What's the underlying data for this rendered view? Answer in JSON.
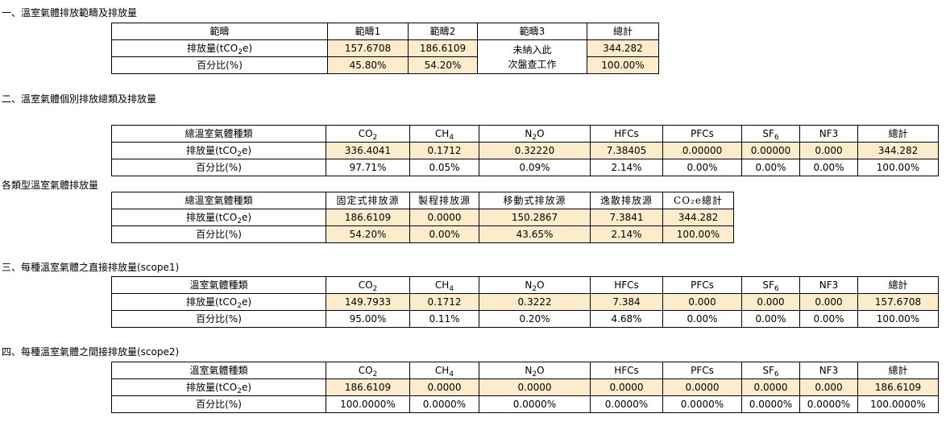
{
  "sections": {
    "s1": {
      "title": "一、溫室氣體排放範疇及排放量",
      "headers": [
        "範疇",
        "範疇1",
        "範疇2",
        "範疇3",
        "總計"
      ],
      "row_emission_label": [
        "排放量(tCO",
        "2",
        "e)"
      ],
      "row_percent_label": "百分比(%)",
      "scope1_emission": "157.6708",
      "scope2_emission": "186.6109",
      "scope3_note": [
        "未納入此",
        "次盤查工作"
      ],
      "total_emission": "344.282",
      "scope1_percent": "45.80%",
      "scope2_percent": "54.20%",
      "total_percent": "100.00%"
    },
    "s2": {
      "title": "二、溫室氣體個別排放總類及排放量",
      "header_label": "總溫室氣體種類",
      "gases": [
        {
          "base": "CO",
          "sub": "2",
          "emission": "336.4041",
          "percent": "97.71%"
        },
        {
          "base": "CH",
          "sub": "4",
          "emission": "0.1712",
          "percent": "0.05%"
        },
        {
          "base": "N",
          "sub": "2",
          "tail": "O",
          "emission": "0.32220",
          "percent": "0.09%"
        },
        {
          "base": "HFCs",
          "emission": "7.38405",
          "percent": "2.14%"
        },
        {
          "base": "PFCs",
          "emission": "0.00000",
          "percent": "0.00%"
        },
        {
          "base": "SF",
          "sub": "6",
          "emission": "0.00000",
          "percent": "0.00%"
        },
        {
          "base": "NF3",
          "emission": "0.000",
          "percent": "0.00%"
        },
        {
          "base": "總計",
          "emission": "344.282",
          "percent": "100.00%"
        }
      ]
    },
    "s2b": {
      "title": "各類型溫室氣體排放量",
      "header_label": "總溫室氣體種類",
      "types": [
        {
          "label": "固定式排放源",
          "emission": "186.6109",
          "percent": "54.20%"
        },
        {
          "label": "製程排放源",
          "emission": "0.0000",
          "percent": "0.00%"
        },
        {
          "label": "移動式排放源",
          "emission": "150.2867",
          "percent": "43.65%"
        },
        {
          "label": "逸散排放源",
          "emission": "7.3841",
          "percent": "2.14%"
        },
        {
          "label": "CO₂e總計",
          "emission": "344.282",
          "percent": "100.00%"
        }
      ]
    },
    "s3": {
      "title": "三、每種溫室氣體之直接排放量(scope1)",
      "header_label": "溫室氣體種類",
      "gases": [
        {
          "base": "CO",
          "sub": "2",
          "emission": "149.7933",
          "percent": "95.00%"
        },
        {
          "base": "CH",
          "sub": "4",
          "emission": "0.1712",
          "percent": "0.11%"
        },
        {
          "base": "N",
          "sub": "2",
          "tail": "O",
          "emission": "0.3222",
          "percent": "0.20%"
        },
        {
          "base": "HFCs",
          "emission": "7.384",
          "percent": "4.68%"
        },
        {
          "base": "PFCs",
          "emission": "0.000",
          "percent": "0.00%"
        },
        {
          "base": "SF",
          "sub": "6",
          "emission": "0.000",
          "percent": "0.00%"
        },
        {
          "base": "NF3",
          "emission": "0.000",
          "percent": "0.00%"
        },
        {
          "base": "總計",
          "emission": "157.6708",
          "percent": "100.00%"
        }
      ]
    },
    "s4": {
      "title": "四、每種溫室氣體之間接排放量(scope2)",
      "header_label": "溫室氣體種類",
      "gases": [
        {
          "base": "CO",
          "sub": "2",
          "emission": "186.6109",
          "percent": "100.0000%"
        },
        {
          "base": "CH",
          "sub": "4",
          "emission": "0.0000",
          "percent": "0.0000%"
        },
        {
          "base": "N",
          "sub": "2",
          "tail": "O",
          "emission": "0.0000",
          "percent": "0.0000%"
        },
        {
          "base": "HFCs",
          "emission": "0.0000",
          "percent": "0.0000%"
        },
        {
          "base": "PFCs",
          "emission": "0.0000",
          "percent": "0.0000%"
        },
        {
          "base": "SF",
          "sub": "6",
          "emission": "0.0000",
          "percent": "0.0000%"
        },
        {
          "base": "NF3",
          "emission": "0.000",
          "percent": "0.0000%"
        },
        {
          "base": "總計",
          "emission": "186.6109",
          "percent": "100.0000%"
        }
      ]
    }
  },
  "colors": {
    "value_fill": "#fdeccb",
    "border": "#000000"
  }
}
